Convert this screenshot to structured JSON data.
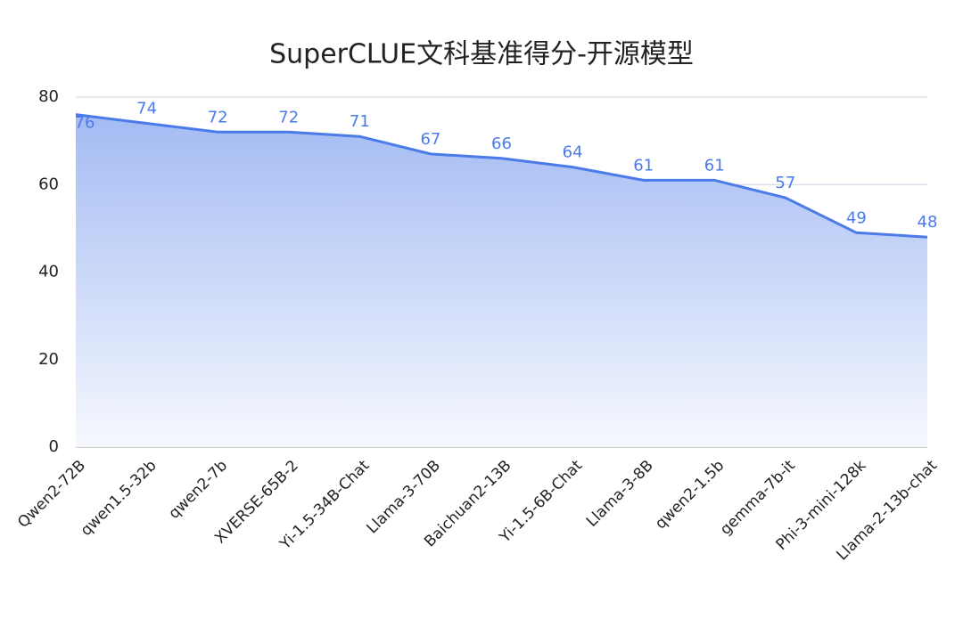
{
  "chart_data": {
    "type": "area",
    "title": "SuperCLUE文科基准得分-开源模型",
    "categories": [
      "Qwen2-72B",
      "qwen1.5-32b",
      "qwen2-7b",
      "XVERSE-65B-2",
      "Yi-1.5-34B-Chat",
      "Llama-3-70B",
      "Baichuan2-13B",
      "Yi-1.5-6B-Chat",
      "Llama-3-8B",
      "qwen2-1.5b",
      "gemma-7b-it",
      "Phi-3-mini-128k",
      "Llama-2-13b-chat"
    ],
    "values": [
      76,
      74,
      72,
      72,
      71,
      67,
      66,
      64,
      61,
      61,
      57,
      49,
      48
    ],
    "color": "#4a7be8",
    "ylim": [
      0,
      80
    ],
    "yticks": [
      0,
      20,
      40,
      60,
      80
    ],
    "grid": true
  }
}
